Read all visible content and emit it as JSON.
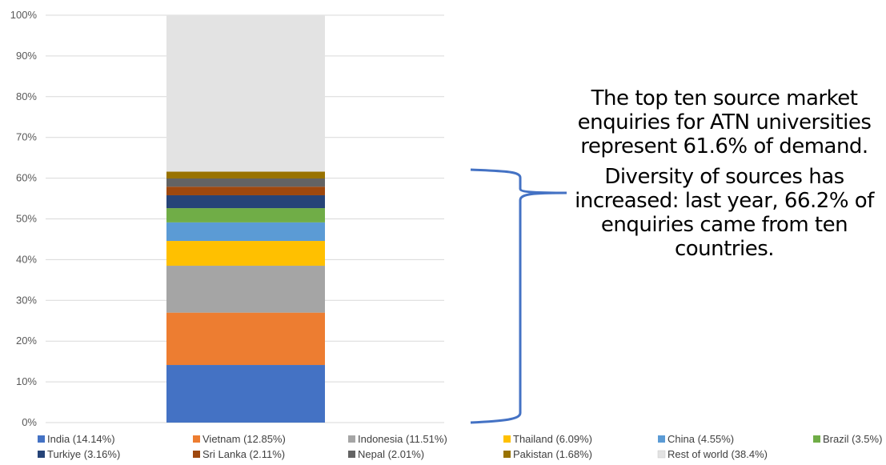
{
  "chart_data": {
    "type": "bar",
    "stacked": true,
    "categories": [
      ""
    ],
    "ylim": [
      0,
      100
    ],
    "yticks": [
      "0%",
      "10%",
      "20%",
      "30%",
      "40%",
      "50%",
      "60%",
      "70%",
      "80%",
      "90%",
      "100%"
    ],
    "grid": true,
    "legend_position": "bottom",
    "series": [
      {
        "name": "India (14.14%)",
        "values": [
          14.14
        ],
        "color": "#4472C4"
      },
      {
        "name": "Vietnam (12.85%)",
        "values": [
          12.85
        ],
        "color": "#ED7D31"
      },
      {
        "name": "Indonesia (11.51%)",
        "values": [
          11.51
        ],
        "color": "#A5A5A5"
      },
      {
        "name": "Thailand (6.09%)",
        "values": [
          6.09
        ],
        "color": "#FFC000"
      },
      {
        "name": "China (4.55%)",
        "values": [
          4.55
        ],
        "color": "#5B9BD5"
      },
      {
        "name": "Brazil (3.5%)",
        "values": [
          3.5
        ],
        "color": "#70AD47"
      },
      {
        "name": "Turkiye (3.16%)",
        "values": [
          3.16
        ],
        "color": "#264478"
      },
      {
        "name": "Sri Lanka (2.11%)",
        "values": [
          2.11
        ],
        "color": "#9E480E"
      },
      {
        "name": "Nepal (2.01%)",
        "values": [
          2.01
        ],
        "color": "#636363"
      },
      {
        "name": "Pakistan (1.68%)",
        "values": [
          1.68
        ],
        "color": "#997300"
      },
      {
        "name": "Rest of world (38.4%)",
        "values": [
          38.4
        ],
        "color": "#E3E3E3"
      }
    ]
  },
  "annotation": {
    "paragraph1": "The top ten source market enquiries for ATN universities represent 61.6% of demand.",
    "paragraph2": "Diversity of sources has increased: last year, 66.2% of enquiries came from ten countries.",
    "brace_color": "#4472C4"
  }
}
